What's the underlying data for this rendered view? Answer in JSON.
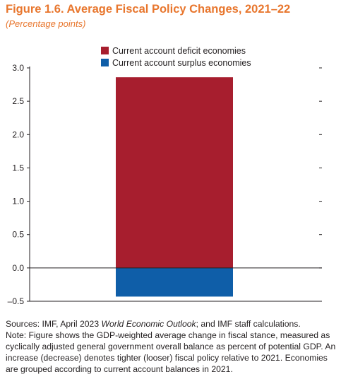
{
  "title": "Figure 1.6. Average Fiscal Policy Changes, 2021–22",
  "subtitle": "(Percentage points)",
  "chart_data": {
    "type": "bar",
    "stacked": true,
    "categories": [
      ""
    ],
    "series": [
      {
        "name": "Current account deficit economies",
        "values": [
          2.86
        ],
        "color": "#a71e2e"
      },
      {
        "name": "Current account surplus economies",
        "values": [
          -0.43
        ],
        "color": "#0f5ea8"
      }
    ],
    "ylim": [
      -0.5,
      3.0
    ],
    "yticks": [
      -0.5,
      0.0,
      0.5,
      1.0,
      1.5,
      2.0,
      2.5,
      3.0
    ],
    "ytick_labels": [
      "–0.5",
      "0.0",
      "0.5",
      "1.0",
      "1.5",
      "2.0",
      "2.5",
      "3.0"
    ],
    "legend_position": "top-center",
    "grid": false
  },
  "notes": {
    "sources_prefix": "Sources: IMF, April 2023 ",
    "sources_italic": "World Economic Outlook",
    "sources_suffix": "; and IMF staff calculations.",
    "note": "Note: Figure shows the GDP-weighted average change in fiscal stance, measured as cyclically adjusted general government overall balance as percent of potential GDP. An increase (decrease) denotes tighter (looser) fiscal policy relative to 2021. Economies are grouped according to current account balances in 2021."
  }
}
